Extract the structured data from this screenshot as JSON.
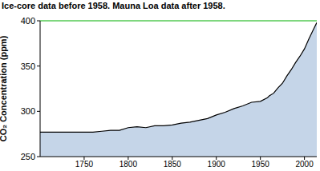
{
  "chart_data": {
    "type": "area",
    "title": "Ice-core data before 1958. Mauna Loa data after 1958.",
    "y_label": "CO₂ Concentration (ppm)",
    "x": [
      1700,
      1710,
      1720,
      1730,
      1740,
      1750,
      1760,
      1770,
      1780,
      1790,
      1800,
      1810,
      1820,
      1830,
      1840,
      1850,
      1860,
      1870,
      1880,
      1890,
      1900,
      1910,
      1920,
      1930,
      1940,
      1950,
      1958,
      1960,
      1965,
      1970,
      1975,
      1980,
      1985,
      1990,
      1995,
      2000,
      2005,
      2010,
      2014
    ],
    "values": [
      277,
      277,
      277,
      277,
      277,
      277,
      277,
      278,
      279,
      279,
      282,
      283,
      282,
      284,
      284,
      285,
      287,
      288,
      290,
      292,
      296,
      299,
      303,
      306,
      310,
      311,
      315,
      317,
      320,
      326,
      331,
      339,
      346,
      354,
      361,
      369,
      380,
      390,
      398
    ],
    "color": "#c5d5e8",
    "xlim": [
      1700,
      2014
    ],
    "xticks": [
      1750,
      1800,
      1850,
      1900,
      1950,
      2000
    ],
    "ylim": [
      250,
      400
    ],
    "yticks": [
      250,
      300,
      350,
      400
    ],
    "hline": {
      "value": 400,
      "color": "#00b000"
    },
    "grid": false
  }
}
